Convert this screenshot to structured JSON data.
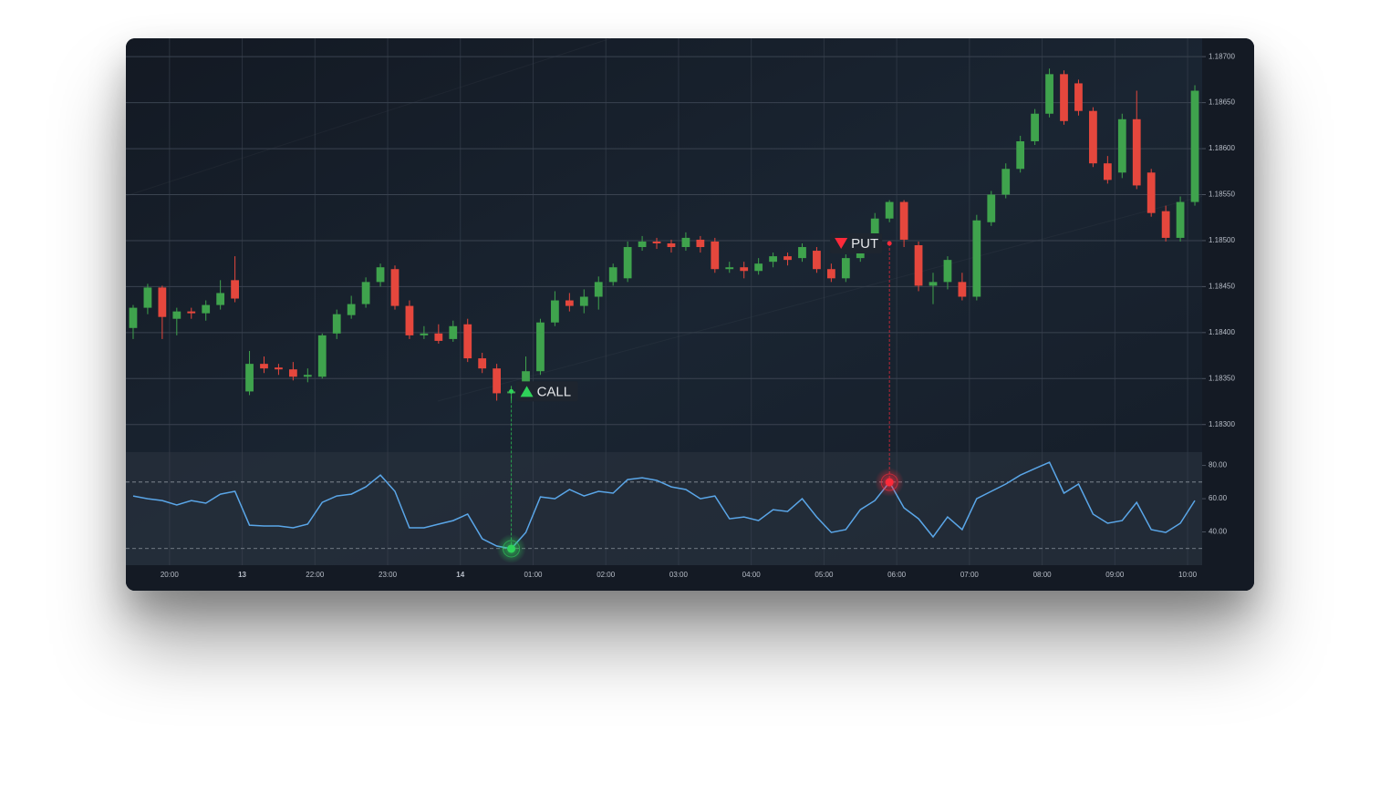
{
  "chart_data": [
    {
      "type": "candlestick",
      "open": [
        1.18405,
        1.18427,
        1.18449,
        1.18415,
        1.18423,
        1.18421,
        1.1843,
        1.18457,
        1.18336,
        1.18366,
        1.18362,
        1.1836,
        1.18352,
        1.18352,
        1.18399,
        1.18419,
        1.18431,
        1.18455,
        1.18469,
        1.18429,
        1.18397,
        1.18399,
        1.18393,
        1.18409,
        1.18372,
        1.18361,
        1.18334,
        1.18334,
        1.18358,
        1.18411,
        1.18435,
        1.18429,
        1.18439,
        1.18455,
        1.18459,
        1.18493,
        1.18499,
        1.18497,
        1.18493,
        1.18501,
        1.18499,
        1.18469,
        1.18471,
        1.18467,
        1.18477,
        1.18483,
        1.18481,
        1.18489,
        1.18469,
        1.18459,
        1.18481,
        1.18495,
        1.18524,
        1.18542,
        1.18495,
        1.18451,
        1.18455,
        1.18455,
        1.18439,
        1.1852,
        1.1855,
        1.18578,
        1.18608,
        1.18638,
        1.18681,
        1.18671,
        1.18641,
        1.18584,
        1.18574,
        1.18632,
        1.18574,
        1.18532,
        1.18503,
        1.18542
      ],
      "high": [
        1.1843,
        1.18453,
        1.18451,
        1.18427,
        1.18427,
        1.18435,
        1.18457,
        1.18483,
        1.1838,
        1.18374,
        1.18366,
        1.18368,
        1.18361,
        1.18399,
        1.18425,
        1.1844,
        1.1846,
        1.18475,
        1.18473,
        1.18435,
        1.18407,
        1.18409,
        1.18413,
        1.18415,
        1.18378,
        1.18366,
        1.18342,
        1.18374,
        1.18415,
        1.18445,
        1.18443,
        1.18447,
        1.18461,
        1.18475,
        1.18499,
        1.18505,
        1.18503,
        1.18501,
        1.18509,
        1.18505,
        1.18503,
        1.18477,
        1.18477,
        1.18481,
        1.18487,
        1.18487,
        1.18497,
        1.18493,
        1.18475,
        1.18485,
        1.18503,
        1.1853,
        1.18544,
        1.18544,
        1.18499,
        1.18465,
        1.18483,
        1.18465,
        1.18528,
        1.18554,
        1.18584,
        1.18614,
        1.18643,
        1.18687,
        1.18685,
        1.18675,
        1.18645,
        1.18592,
        1.18638,
        1.18663,
        1.18578,
        1.18538,
        1.18548,
        1.18669
      ],
      "low": [
        1.18393,
        1.1842,
        1.18393,
        1.18397,
        1.18415,
        1.18413,
        1.18425,
        1.18433,
        1.18332,
        1.18356,
        1.18354,
        1.18348,
        1.18346,
        1.1835,
        1.18393,
        1.18415,
        1.18427,
        1.1845,
        1.18425,
        1.18393,
        1.18393,
        1.18388,
        1.1839,
        1.18368,
        1.18356,
        1.18326,
        1.18326,
        1.18331,
        1.18354,
        1.18407,
        1.18423,
        1.18421,
        1.18425,
        1.18451,
        1.18455,
        1.18489,
        1.18491,
        1.18487,
        1.18489,
        1.18487,
        1.18465,
        1.18465,
        1.18459,
        1.18463,
        1.18471,
        1.18473,
        1.18477,
        1.18465,
        1.18455,
        1.18455,
        1.18477,
        1.18491,
        1.1852,
        1.18493,
        1.18445,
        1.18431,
        1.18447,
        1.18435,
        1.18435,
        1.18516,
        1.18546,
        1.18574,
        1.18604,
        1.18634,
        1.18626,
        1.18636,
        1.1858,
        1.18562,
        1.18568,
        1.18556,
        1.18526,
        1.18499,
        1.18499,
        1.18538
      ],
      "close": [
        1.18427,
        1.18449,
        1.18417,
        1.18423,
        1.18421,
        1.1843,
        1.18443,
        1.18437,
        1.18366,
        1.18361,
        1.1836,
        1.18352,
        1.18354,
        1.18397,
        1.1842,
        1.18431,
        1.18455,
        1.18471,
        1.18429,
        1.18397,
        1.18399,
        1.18391,
        1.18407,
        1.18372,
        1.18361,
        1.18334,
        1.18336,
        1.18358,
        1.18411,
        1.18435,
        1.18429,
        1.18439,
        1.18455,
        1.18471,
        1.18493,
        1.18499,
        1.18497,
        1.18493,
        1.18503,
        1.18493,
        1.18469,
        1.18471,
        1.18467,
        1.18475,
        1.18483,
        1.18479,
        1.18493,
        1.18469,
        1.18459,
        1.18481,
        1.18495,
        1.18524,
        1.18542,
        1.18501,
        1.18451,
        1.18455,
        1.18479,
        1.18439,
        1.18522,
        1.1855,
        1.18578,
        1.18608,
        1.18638,
        1.18681,
        1.1863,
        1.18641,
        1.18584,
        1.18566,
        1.18632,
        1.1856,
        1.1853,
        1.18503,
        1.18542,
        1.18663
      ],
      "up_color": "#3fa34d",
      "down_color": "#e5473d",
      "ylim": [
        1.1827,
        1.1872
      ],
      "yticks": [
        {
          "value": 1.187,
          "label": "1.18700"
        },
        {
          "value": 1.1865,
          "label": "1.18650"
        },
        {
          "value": 1.186,
          "label": "1.18600"
        },
        {
          "value": 1.1855,
          "label": "1.18550"
        },
        {
          "value": 1.185,
          "label": "1.18500"
        },
        {
          "value": 1.1845,
          "label": "1.18450"
        },
        {
          "value": 1.184,
          "label": "1.18400"
        },
        {
          "value": 1.1835,
          "label": "1.18350"
        },
        {
          "value": 1.183,
          "label": "1.18300"
        }
      ],
      "grid": true,
      "annotations": [
        {
          "text": "CALL",
          "x": 26.5,
          "y": 1.18336,
          "direction": "up"
        },
        {
          "text": "PUT",
          "x": 52.5,
          "y": 1.18497,
          "direction": "down"
        }
      ]
    },
    {
      "type": "line",
      "values": [
        61.6,
        60.0,
        58.9,
        56.2,
        58.9,
        57.3,
        62.7,
        64.4,
        44.1,
        43.6,
        43.6,
        42.5,
        44.7,
        57.8,
        61.6,
        62.7,
        67.1,
        74.2,
        64.4,
        42.5,
        42.5,
        44.7,
        46.8,
        50.7,
        35.9,
        31.5,
        29.9,
        39.7,
        61.1,
        60.0,
        65.5,
        61.6,
        64.4,
        63.3,
        71.5,
        72.6,
        71.0,
        67.1,
        65.5,
        60.0,
        61.6,
        47.9,
        49.0,
        46.8,
        53.4,
        52.3,
        60.0,
        49.0,
        39.7,
        41.4,
        53.4,
        58.9,
        69.9,
        54.5,
        47.9,
        37.0,
        49.0,
        41.4,
        60.0,
        64.4,
        68.8,
        74.2,
        78.1,
        81.9,
        63.3,
        68.8,
        50.7,
        45.2,
        46.8,
        57.8,
        41.4,
        39.7,
        45.2,
        58.9
      ],
      "color": "#5aa6e8",
      "ylim": [
        20,
        88
      ],
      "yticks": [
        {
          "value": 80,
          "label": "80.00"
        },
        {
          "value": 60,
          "label": "60.00"
        },
        {
          "value": 40,
          "label": "40.00"
        }
      ],
      "levels": [
        70,
        30
      ],
      "grid": true,
      "xlim": [
        0,
        74
      ],
      "xticks": [
        {
          "value": 3,
          "label": "20:00"
        },
        {
          "value": 8,
          "label": "13"
        },
        {
          "value": 13,
          "label": "22:00"
        },
        {
          "value": 18,
          "label": "23:00"
        },
        {
          "value": 23,
          "label": "14"
        },
        {
          "value": 28,
          "label": "01:00"
        },
        {
          "value": 33,
          "label": "02:00"
        },
        {
          "value": 38,
          "label": "03:00"
        },
        {
          "value": 43,
          "label": "04:00"
        },
        {
          "value": 48,
          "label": "05:00"
        },
        {
          "value": 53,
          "label": "06:00"
        },
        {
          "value": 58,
          "label": "07:00"
        },
        {
          "value": 63,
          "label": "08:00"
        },
        {
          "value": 68,
          "label": "09:00"
        },
        {
          "value": 73,
          "label": "10:00"
        }
      ]
    }
  ]
}
